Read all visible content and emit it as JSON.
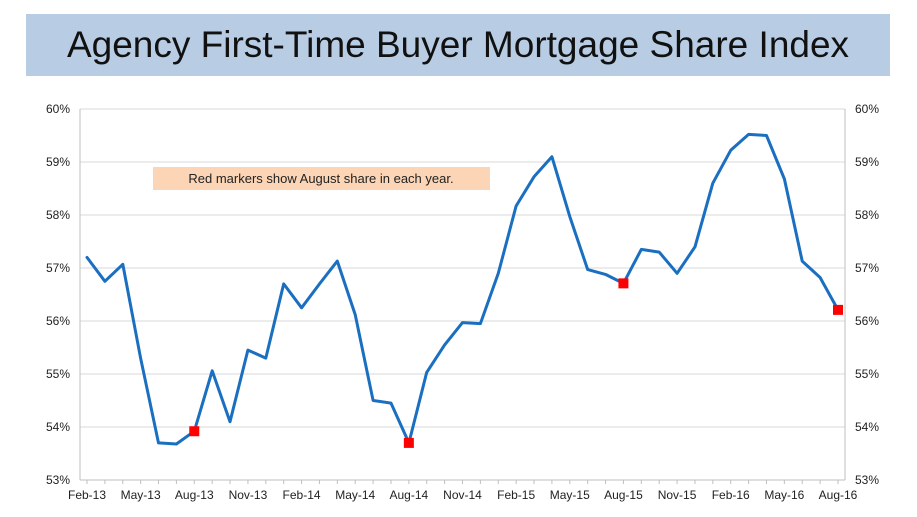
{
  "chart_data": {
    "type": "line",
    "title": "Agency First-Time Buyer Mortgage Share Index",
    "annotation": "Red markers show August share in each year.",
    "annotation_color": "#fbd5b5",
    "line_color": "#1a6fc0",
    "marker_color": "#ff0000",
    "ylim": [
      53,
      60
    ],
    "y_ticks": [
      "53%",
      "54%",
      "55%",
      "56%",
      "57%",
      "58%",
      "59%",
      "60%"
    ],
    "x_tick_labels": [
      "Feb-13",
      "May-13",
      "Aug-13",
      "Nov-13",
      "Feb-14",
      "May-14",
      "Aug-14",
      "Nov-14",
      "Feb-15",
      "May-15",
      "Aug-15",
      "Nov-15",
      "Feb-16",
      "May-16",
      "Aug-16"
    ],
    "x": [
      "Feb-13",
      "Mar-13",
      "Apr-13",
      "May-13",
      "Jun-13",
      "Jul-13",
      "Aug-13",
      "Sep-13",
      "Oct-13",
      "Nov-13",
      "Dec-13",
      "Jan-14",
      "Feb-14",
      "Mar-14",
      "Apr-14",
      "May-14",
      "Jun-14",
      "Jul-14",
      "Aug-14",
      "Sep-14",
      "Oct-14",
      "Nov-14",
      "Dec-14",
      "Jan-15",
      "Feb-15",
      "Mar-15",
      "Apr-15",
      "May-15",
      "Jun-15",
      "Jul-15",
      "Aug-15",
      "Sep-15",
      "Oct-15",
      "Nov-15",
      "Dec-15",
      "Jan-16",
      "Feb-16",
      "Mar-16",
      "Apr-16",
      "May-16",
      "Jun-16",
      "Jul-16",
      "Aug-16"
    ],
    "series": [
      {
        "values": [
          57.2,
          56.75,
          57.07,
          55.3,
          53.7,
          53.68,
          53.92,
          55.06,
          54.1,
          55.45,
          55.3,
          56.7,
          56.25,
          56.7,
          57.13,
          56.12,
          54.5,
          54.45,
          53.7,
          55.03,
          55.55,
          55.97,
          55.95,
          56.9,
          58.17,
          58.72,
          59.1,
          57.97,
          56.97,
          56.88,
          56.71,
          57.35,
          57.3,
          56.9,
          57.4,
          58.6,
          59.22,
          59.52,
          59.5,
          58.68,
          57.13,
          56.82,
          56.21
        ]
      }
    ],
    "highlighted_points": [
      {
        "x": "Aug-13",
        "y": 53.92
      },
      {
        "x": "Aug-14",
        "y": 53.7
      },
      {
        "x": "Aug-15",
        "y": 56.71
      },
      {
        "x": "Aug-16",
        "y": 56.21
      }
    ],
    "grid": "horizontal"
  }
}
